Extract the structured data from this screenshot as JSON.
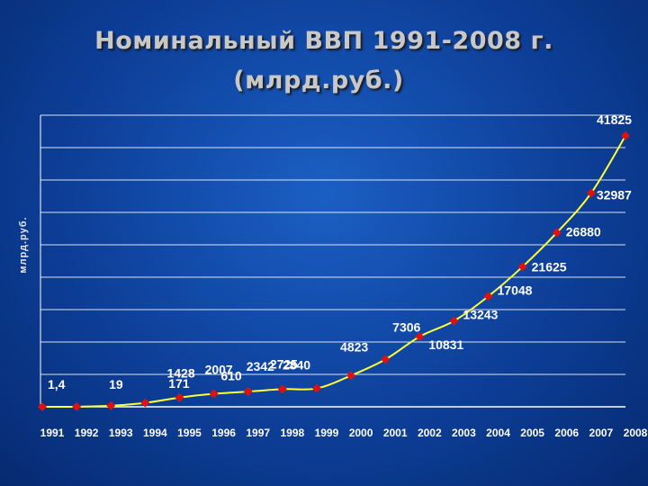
{
  "title_line1": "Номинальный ВВП 1991-2008 г.",
  "title_line2": "(млрд.руб.)",
  "chart_data": {
    "type": "line",
    "ylabel": "млрд.руб.",
    "categories": [
      "1991",
      "1992",
      "1993",
      "1994",
      "1995",
      "1996",
      "1997",
      "1998",
      "1999",
      "2000",
      "2001",
      "2002",
      "2003",
      "2004",
      "2005",
      "2006",
      "2007",
      "2008"
    ],
    "values": [
      1.4,
      19,
      171,
      610,
      1428,
      2007,
      2342,
      2725,
      2840,
      4823,
      7306,
      10831,
      13243,
      17048,
      21625,
      26880,
      32987,
      41825
    ],
    "data_labels": [
      "1,4",
      "19",
      "171",
      "610",
      "1428",
      "2007",
      "2342",
      "2725",
      "2840",
      "4823",
      "7306",
      "10831",
      "13243",
      "17048",
      "21625",
      "26880",
      "32987",
      "41825"
    ],
    "ylim": [
      0,
      45000
    ],
    "grid": true,
    "line_color": "#ffff33",
    "marker_color": "#e01010",
    "grid_color": "#ffffff"
  }
}
